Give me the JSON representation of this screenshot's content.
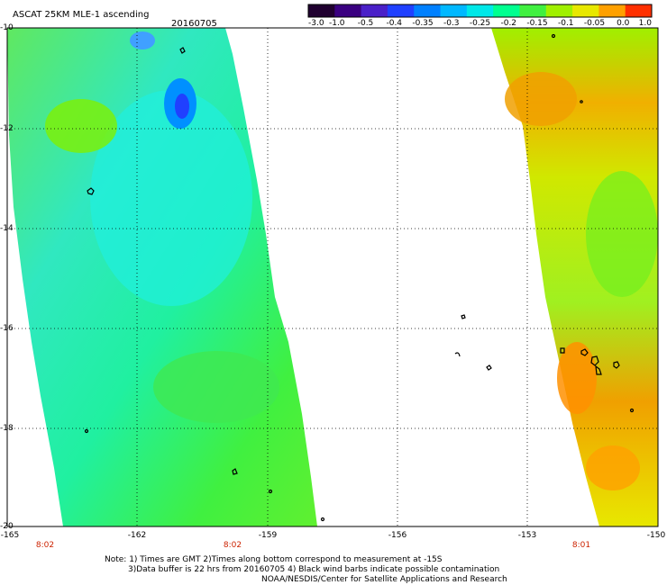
{
  "header": {
    "title": "ASCAT 25KM MLE-1 ascending",
    "date": "20160705"
  },
  "colorbar": {
    "labels": [
      "-3.0",
      "-1.0",
      "-0.5",
      "-0.4",
      "-0.35",
      "-0.3",
      "-0.25",
      "-0.2",
      "-0.15",
      "-0.1",
      "-0.05",
      "0.0",
      "1.0"
    ],
    "colors": [
      "#200030",
      "#3a0080",
      "#4a20c8",
      "#2040ff",
      "#0080ff",
      "#00b8ff",
      "#00e8e8",
      "#00ff90",
      "#40f040",
      "#a0f000",
      "#e8e800",
      "#ffa000",
      "#ff3000"
    ]
  },
  "axes": {
    "y_ticks": [
      "-10",
      "-12",
      "-14",
      "-16",
      "-18",
      "-20"
    ],
    "x_ticks": [
      "-165",
      "-162",
      "-159",
      "-156",
      "-153",
      "-150"
    ]
  },
  "pass_times": [
    "8:02",
    "8:02",
    "8:01"
  ],
  "notes": {
    "line1": "Note: 1) Times are GMT 2)Times along bottom correspond to measurement at -15S",
    "line2": "3)Data buffer is 22 hrs from 20160705 4) Black wind barbs indicate possible contamination",
    "line3": "NOAA/NESDIS/Center for Satellite Applications and Research"
  }
}
